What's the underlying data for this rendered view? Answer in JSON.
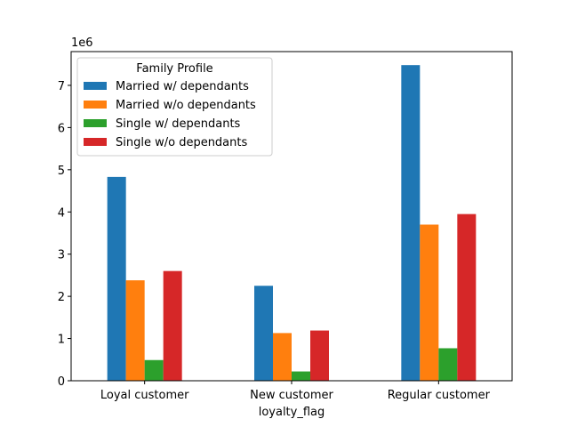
{
  "chart_data": {
    "type": "bar",
    "categories": [
      "Loyal customer",
      "New customer",
      "Regular customer"
    ],
    "series": [
      {
        "name": "Married w/ dependants",
        "color": "#1f77b4",
        "values": [
          4830000,
          2250000,
          7480000
        ]
      },
      {
        "name": "Married w/o dependants",
        "color": "#ff7f0e",
        "values": [
          2380000,
          1130000,
          3700000
        ]
      },
      {
        "name": "Single w/ dependants",
        "color": "#2ca02c",
        "values": [
          490000,
          220000,
          770000
        ]
      },
      {
        "name": "Single w/o dependants",
        "color": "#d62728",
        "values": [
          2600000,
          1190000,
          3950000
        ]
      }
    ],
    "xlabel": "loyalty_flag",
    "ylabel": "",
    "ylim": [
      0,
      7800000
    ],
    "yticks": [
      0,
      1,
      2,
      3,
      4,
      5,
      6,
      7
    ],
    "yticks_multiplier_label": "1e6",
    "legend": {
      "title": "Family Profile",
      "placement": "top-left"
    },
    "grid": false
  }
}
